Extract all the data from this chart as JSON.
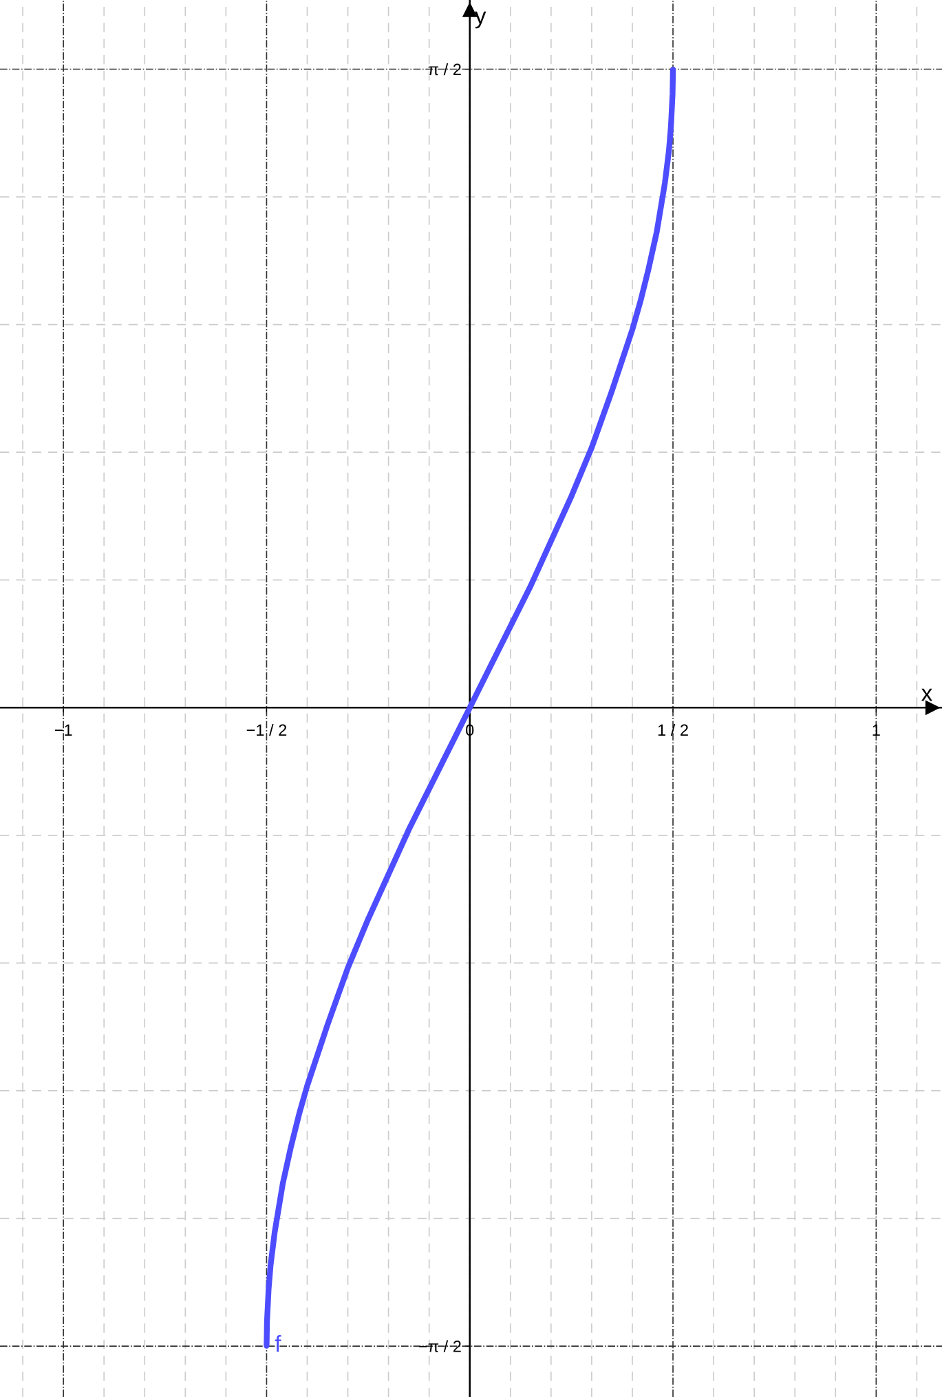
{
  "chart_data": {
    "type": "line",
    "xlabel": "x",
    "ylabel": "y",
    "xlim": [
      -1.156,
      1.162
    ],
    "ylim": [
      -1.696,
      1.741
    ],
    "xticks": [
      {
        "value": -1,
        "label": "−1"
      },
      {
        "value": -0.5,
        "label": "−1 / 2"
      },
      0,
      {
        "value": 0.5,
        "label": "1 / 2"
      },
      1
    ],
    "yticks": [
      {
        "value": -1.5708,
        "label": "−π / 2"
      },
      {
        "value": 1.5708,
        "label": "π / 2"
      }
    ],
    "grid": true,
    "legend": false,
    "marker": "none",
    "line_style": "solid",
    "series": [
      {
        "name": "f",
        "color": "#4d4dff",
        "x": [
          -0.5,
          -0.499,
          -0.495,
          -0.49,
          -0.48,
          -0.46,
          -0.44,
          -0.42,
          -0.4,
          -0.35,
          -0.3,
          -0.25,
          -0.2,
          -0.15,
          -0.1,
          -0.05,
          0,
          0.05,
          0.1,
          0.15,
          0.2,
          0.25,
          0.3,
          0.35,
          0.4,
          0.42,
          0.44,
          0.46,
          0.48,
          0.49,
          0.495,
          0.499,
          0.5
        ],
        "values": [
          -1.57,
          -1.51,
          -1.43,
          -1.37,
          -1.29,
          -1.17,
          -1.08,
          -1.0,
          -0.93,
          -0.78,
          -0.64,
          -0.52,
          -0.41,
          -0.3,
          -0.2,
          -0.1,
          0,
          0.1,
          0.2,
          0.3,
          0.41,
          0.52,
          0.64,
          0.78,
          0.93,
          1.0,
          1.08,
          1.17,
          1.29,
          1.37,
          1.43,
          1.51,
          1.57
        ]
      }
    ]
  }
}
